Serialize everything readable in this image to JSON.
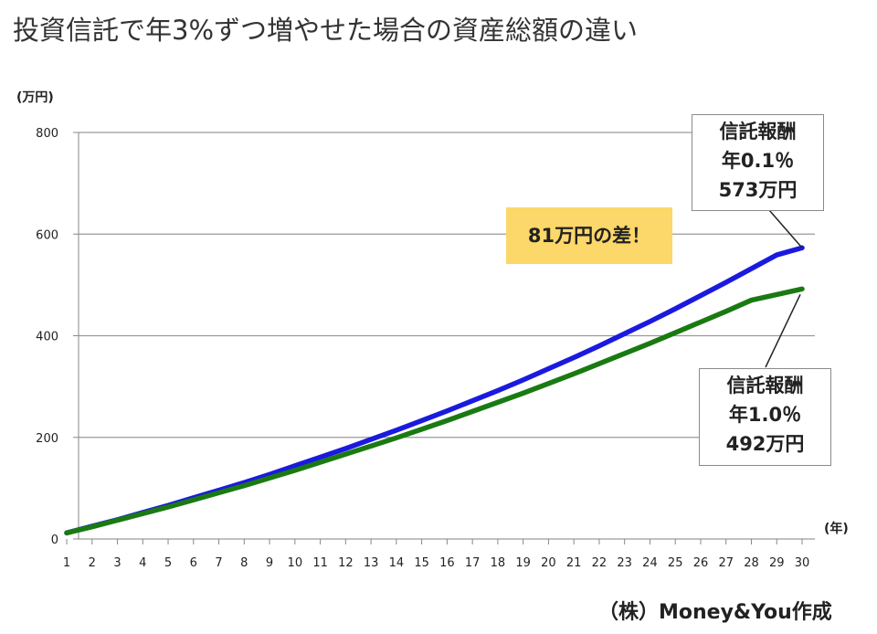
{
  "title": "投資信託で年3%ずつ増やせた場合の資産総額の違い",
  "credit": "（株）Money&You作成",
  "annotation_difference": "81万円の差！",
  "callouts": {
    "upper": [
      "信託報酬",
      "年0.1％",
      "573万円"
    ],
    "lower": [
      "信託報酬",
      "年1.0％",
      "492万円"
    ]
  },
  "chart_data": {
    "type": "line",
    "title": "投資信託で年3%ずつ増やせた場合の資産総額の違い",
    "xlabel": "(年)",
    "ylabel": "(万円)",
    "x": [
      1,
      2,
      3,
      4,
      5,
      6,
      7,
      8,
      9,
      10,
      11,
      12,
      13,
      14,
      15,
      16,
      17,
      18,
      19,
      20,
      21,
      22,
      23,
      24,
      25,
      26,
      27,
      28,
      29,
      30
    ],
    "xlim": [
      1,
      30
    ],
    "ylim": [
      0,
      800
    ],
    "yticks": [
      0,
      200,
      400,
      600,
      800
    ],
    "grid": true,
    "series": [
      {
        "name": "信託報酬 年0.1％",
        "color": "#1a1adf",
        "values": [
          12,
          25,
          38,
          52,
          66,
          81,
          96,
          111,
          127,
          144,
          161,
          178,
          196,
          214,
          233,
          252,
          272,
          292,
          313,
          335,
          357,
          380,
          404,
          428,
          453,
          479,
          505,
          532,
          559,
          573
        ]
      },
      {
        "name": "信託報酬 年1.0％",
        "color": "#1a7a12",
        "values": [
          12,
          24,
          37,
          50,
          63,
          77,
          91,
          105,
          120,
          135,
          151,
          167,
          183,
          199,
          216,
          233,
          251,
          269,
          287,
          306,
          325,
          345,
          365,
          385,
          406,
          427,
          448,
          470,
          481,
          492
        ]
      }
    ]
  }
}
